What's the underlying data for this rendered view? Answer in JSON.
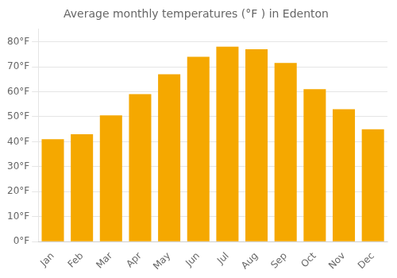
{
  "chart_data": {
    "type": "bar",
    "title": "Average monthly temperatures (°F ) in Edenton",
    "categories": [
      "Jan",
      "Feb",
      "Mar",
      "Apr",
      "May",
      "Jun",
      "Jul",
      "Aug",
      "Sep",
      "Oct",
      "Nov",
      "Dec"
    ],
    "values": [
      41,
      43,
      50.5,
      59,
      67,
      74,
      78,
      77,
      71.5,
      61,
      53,
      45
    ],
    "color": "#F5A800",
    "ylim": [
      0,
      85
    ],
    "yticks": [
      {
        "value": 0,
        "label": "0°F"
      },
      {
        "value": 10,
        "label": "10°F"
      },
      {
        "value": 20,
        "label": "20°F"
      },
      {
        "value": 30,
        "label": "30°F"
      },
      {
        "value": 40,
        "label": "40°F"
      },
      {
        "value": 50,
        "label": "50°F"
      },
      {
        "value": 60,
        "label": "60°F"
      },
      {
        "value": 70,
        "label": "70°F"
      },
      {
        "value": 80,
        "label": "80°F"
      }
    ],
    "grid": true
  }
}
